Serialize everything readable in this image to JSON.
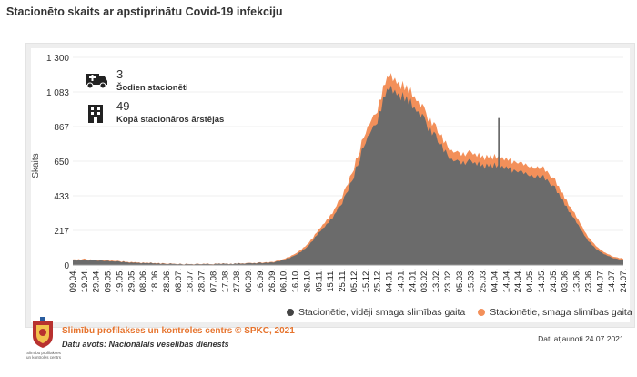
{
  "page_title": "Stacionēto skaits ar apstiprinātu Covid-19 infekciju",
  "stats": {
    "today": {
      "value": "3",
      "label": "Šodien stacionēti",
      "icon": "ambulance-icon"
    },
    "total": {
      "value": "49",
      "label": "Kopā stacionāros ārstējas",
      "icon": "hospital-icon"
    }
  },
  "footer": {
    "source": "Slimību profilakses un kontroles centrs © SPKC, 2021",
    "data_source": "Datu avots: Nacionālais veselības dienests",
    "updated": "Dati atjaunoti 24.07.2021.",
    "logo_text": "Slimību profilakses un kontroles centrs"
  },
  "colors": {
    "gray": "#6b6b6b",
    "orange": "#f3905a",
    "accent": "#e6742e"
  },
  "chart_data": {
    "type": "area",
    "ylabel": "Skaits",
    "ylim": [
      0,
      1300
    ],
    "yticks": [
      "0",
      "217",
      "433",
      "650",
      "867",
      "1 083",
      "1 300"
    ],
    "x": [
      "09.04.",
      "19.04.",
      "29.04.",
      "09.05.",
      "19.05.",
      "29.05.",
      "08.06.",
      "18.06.",
      "28.06.",
      "08.07.",
      "18.07.",
      "28.07.",
      "07.08.",
      "17.08.",
      "27.08.",
      "06.09.",
      "16.09.",
      "26.09.",
      "06.10.",
      "16.10.",
      "26.10.",
      "05.11.",
      "15.11.",
      "25.11.",
      "05.12.",
      "15.12.",
      "25.12.",
      "04.01.",
      "14.01.",
      "24.01.",
      "03.02.",
      "13.02.",
      "23.02.",
      "05.03.",
      "15.03.",
      "25.03.",
      "04.04.",
      "14.04.",
      "24.04.",
      "04.05.",
      "14.05.",
      "24.05.",
      "03.06.",
      "13.06.",
      "23.06.",
      "04.07.",
      "14.07.",
      "24.07."
    ],
    "series": [
      {
        "name": "Stacionētie, vidēji smaga slimības gaita",
        "color": "#6b6b6b",
        "values": [
          30,
          32,
          28,
          25,
          20,
          15,
          12,
          10,
          8,
          6,
          5,
          5,
          6,
          7,
          8,
          10,
          12,
          15,
          30,
          60,
          110,
          200,
          280,
          390,
          560,
          780,
          900,
          1130,
          1060,
          1000,
          900,
          800,
          680,
          640,
          650,
          620,
          620,
          600,
          590,
          560,
          560,
          500,
          380,
          270,
          150,
          80,
          45,
          30
        ]
      },
      {
        "name": "Stacionētie, smaga slimības gaita",
        "color": "#f3905a",
        "values": [
          5,
          5,
          4,
          4,
          3,
          3,
          2,
          2,
          2,
          1,
          1,
          1,
          1,
          1,
          1,
          2,
          2,
          3,
          5,
          10,
          15,
          20,
          30,
          40,
          50,
          60,
          70,
          80,
          70,
          70,
          60,
          60,
          55,
          55,
          55,
          55,
          55,
          55,
          55,
          55,
          55,
          50,
          40,
          35,
          25,
          15,
          10,
          8
        ]
      }
    ],
    "spike": {
      "x": "14.04.",
      "value": 920
    },
    "legend_position": "bottom"
  }
}
